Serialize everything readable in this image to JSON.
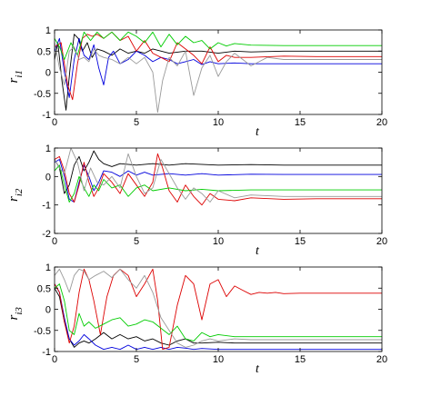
{
  "chart_data": [
    {
      "type": "line",
      "ylabel_main": "r",
      "ylabel_sub": "i1",
      "xlabel": "t",
      "xlim": [
        0,
        20
      ],
      "ylim": [
        -1,
        1
      ],
      "xticks": [
        "0",
        "5",
        "10",
        "15",
        "20"
      ],
      "xtick_values": [
        0,
        5,
        10,
        15,
        20
      ],
      "yticks": [
        "1",
        "0.5",
        "0",
        "-0.5",
        "-1"
      ],
      "ytick_values": [
        1,
        0.5,
        0,
        -0.5,
        -1
      ],
      "grid": false,
      "series": [
        {
          "color": "#000000",
          "x": [
            0,
            0.2,
            0.45,
            0.7,
            0.95,
            1.2,
            1.45,
            1.7,
            2,
            2.3,
            2.6,
            3,
            3.5,
            4,
            4.5,
            5,
            5.5,
            6,
            7,
            8,
            9,
            10,
            11,
            12,
            14,
            16,
            18,
            20
          ],
          "y": [
            0.3,
            0.7,
            -0.2,
            -0.9,
            0.1,
            0.9,
            0.8,
            0.5,
            0.7,
            0.35,
            0.55,
            0.5,
            0.4,
            0.55,
            0.45,
            0.5,
            0.45,
            0.55,
            0.45,
            0.5,
            0.5,
            0.45,
            0.5,
            0.48,
            0.5,
            0.5,
            0.5,
            0.5
          ]
        },
        {
          "color": "#0000dd",
          "x": [
            0,
            0.3,
            0.6,
            0.9,
            1.2,
            1.5,
            1.8,
            2.1,
            2.4,
            2.7,
            3,
            3.3,
            3.6,
            4,
            4.5,
            5,
            5.5,
            6,
            6.5,
            7,
            7.5,
            8,
            8.5,
            9,
            9.5,
            10,
            11,
            12,
            14,
            16,
            18,
            20
          ],
          "y": [
            0.5,
            0.8,
            0,
            -0.6,
            0.3,
            0.8,
            0.4,
            0.3,
            0.65,
            0.1,
            -0.3,
            0.35,
            0.5,
            0.2,
            0.3,
            0.5,
            0.4,
            0.25,
            0.35,
            0.3,
            0.2,
            0.25,
            0.3,
            0.18,
            0.25,
            0.2,
            0.22,
            0.2,
            0.2,
            0.2,
            0.2,
            0.2
          ]
        },
        {
          "color": "#dd0000",
          "x": [
            0,
            0.4,
            0.8,
            1.1,
            1.4,
            1.7,
            2,
            2.3,
            2.6,
            3,
            3.5,
            4,
            4.5,
            5,
            5.5,
            6,
            6.5,
            7,
            7.5,
            8,
            8.5,
            9,
            9.5,
            10,
            10.5,
            11,
            12,
            14,
            16,
            18,
            20
          ],
          "y": [
            0.6,
            0.7,
            -0.3,
            -0.65,
            0.2,
            0.8,
            0.9,
            0.85,
            0.9,
            0.8,
            0.95,
            0.75,
            0.85,
            0.5,
            0.75,
            0.45,
            0.35,
            0.25,
            0.7,
            0.55,
            0.4,
            0.2,
            0.6,
            0.25,
            0.4,
            0.35,
            0.35,
            0.38,
            0.37,
            0.37,
            0.37
          ]
        },
        {
          "color": "#00cc00",
          "x": [
            0,
            0.3,
            0.6,
            1,
            1.4,
            1.8,
            2.2,
            2.6,
            3,
            3.5,
            4,
            4.5,
            5,
            5.5,
            6,
            6.5,
            7,
            7.5,
            8,
            8.5,
            9,
            9.5,
            10,
            10.5,
            11,
            12,
            14,
            16,
            18,
            20
          ],
          "y": [
            0.8,
            0.6,
            0.3,
            0.7,
            0.4,
            0.95,
            0.75,
            0.95,
            0.8,
            0.95,
            0.75,
            0.95,
            0.85,
            0.7,
            0.95,
            0.6,
            0.9,
            0.65,
            0.85,
            0.7,
            0.75,
            0.55,
            0.7,
            0.62,
            0.68,
            0.64,
            0.63,
            0.63,
            0.63,
            0.63
          ]
        },
        {
          "color": "#999999",
          "x": [
            0,
            0.3,
            0.6,
            0.9,
            1.2,
            1.5,
            1.8,
            2.1,
            2.4,
            2.7,
            3,
            3.5,
            4,
            4.5,
            5,
            5.5,
            6,
            6.3,
            6.6,
            7,
            7.5,
            8,
            8.5,
            9,
            9.5,
            10,
            10.5,
            11,
            11.5,
            12,
            12.5,
            13,
            14,
            15,
            16,
            18,
            20
          ],
          "y": [
            0.7,
            0.1,
            -0.3,
            0.5,
            0.6,
            0.3,
            0.35,
            0.25,
            0.55,
            0.4,
            0.35,
            0.3,
            0.2,
            0.35,
            0.2,
            0.35,
            0.0,
            -0.95,
            -0.2,
            0.35,
            0.15,
            0.5,
            -0.55,
            0.1,
            0.4,
            -0.1,
            0.25,
            0.45,
            0.3,
            0.15,
            0.25,
            0.35,
            0.3,
            0.3,
            0.3,
            0.3,
            0.3
          ]
        }
      ]
    },
    {
      "type": "line",
      "ylabel_main": "r",
      "ylabel_sub": "i2",
      "xlabel": "t",
      "xlim": [
        0,
        20
      ],
      "ylim": [
        -2,
        1
      ],
      "xticks": [
        "0",
        "5",
        "10",
        "15",
        "20"
      ],
      "xtick_values": [
        0,
        5,
        10,
        15,
        20
      ],
      "yticks": [
        "1",
        "0",
        "-1",
        "-2"
      ],
      "ytick_values": [
        1,
        0,
        -1,
        -2
      ],
      "grid": false,
      "series": [
        {
          "color": "#000000",
          "x": [
            0,
            0.3,
            0.6,
            0.9,
            1.2,
            1.5,
            1.8,
            2.1,
            2.4,
            2.7,
            3,
            3.5,
            4,
            5,
            6,
            7,
            8,
            10,
            12,
            14,
            16,
            18,
            20
          ],
          "y": [
            0.6,
            0.3,
            -0.6,
            -0.3,
            0.4,
            0.7,
            0.2,
            0.5,
            0.9,
            0.6,
            0.45,
            0.35,
            0.45,
            0.4,
            0.45,
            0.4,
            0.45,
            0.4,
            0.42,
            0.4,
            0.4,
            0.4,
            0.4
          ]
        },
        {
          "color": "#0000dd",
          "x": [
            0,
            0.3,
            0.6,
            0.9,
            1.2,
            1.5,
            1.8,
            2.1,
            2.4,
            2.7,
            3,
            3.5,
            4,
            4.5,
            5,
            5.5,
            6,
            7,
            8,
            9,
            10,
            12,
            14,
            16,
            18,
            20
          ],
          "y": [
            0.5,
            0.6,
            0,
            -0.8,
            -0.9,
            -0.2,
            0.4,
            0.0,
            -0.5,
            -0.2,
            0.2,
            0.15,
            0.0,
            0.2,
            0.05,
            0.15,
            0.05,
            0.1,
            0.05,
            0.1,
            0.05,
            0.08,
            0.07,
            0.07,
            0.07,
            0.07
          ]
        },
        {
          "color": "#dd0000",
          "x": [
            0,
            0.3,
            0.6,
            0.9,
            1.2,
            1.5,
            1.8,
            2.1,
            2.4,
            2.7,
            3,
            3.5,
            4,
            4.5,
            5,
            5.5,
            6,
            6.3,
            6.6,
            7,
            7.5,
            8,
            8.5,
            9,
            9.5,
            10,
            11,
            12,
            14,
            16,
            18,
            20
          ],
          "y": [
            0.6,
            0.7,
            0.2,
            -0.6,
            -0.9,
            -0.3,
            0.5,
            -0.2,
            -0.7,
            -0.4,
            0.1,
            -0.2,
            -0.6,
            0.1,
            -0.3,
            -0.7,
            -0.2,
            0.8,
            0.3,
            -0.5,
            -0.9,
            -0.3,
            -0.7,
            -1.0,
            -0.6,
            -0.8,
            -0.85,
            -0.75,
            -0.8,
            -0.78,
            -0.78,
            -0.78
          ]
        },
        {
          "color": "#00cc00",
          "x": [
            0,
            0.3,
            0.6,
            0.9,
            1.2,
            1.5,
            1.8,
            2.1,
            2.4,
            2.7,
            3,
            3.5,
            4,
            4.5,
            5,
            5.5,
            6,
            7,
            8,
            9,
            10,
            12,
            14,
            16,
            18,
            20
          ],
          "y": [
            0.2,
            0.4,
            -0.3,
            -0.9,
            -0.6,
            0.0,
            -0.4,
            -0.7,
            -0.3,
            -0.5,
            -0.1,
            -0.4,
            -0.3,
            -0.7,
            -0.4,
            -0.3,
            -0.5,
            -0.4,
            -0.5,
            -0.45,
            -0.5,
            -0.47,
            -0.47,
            -0.47,
            -0.47,
            -0.47
          ]
        },
        {
          "color": "#999999",
          "x": [
            0,
            0.3,
            0.6,
            1,
            1.4,
            1.8,
            2.2,
            2.6,
            3,
            3.5,
            4,
            4.5,
            5,
            5.5,
            6,
            6.5,
            7,
            7.5,
            8,
            8.5,
            9,
            9.5,
            10,
            11,
            12,
            14,
            16,
            18,
            20
          ],
          "y": [
            0.6,
            0.3,
            0.1,
            1.0,
            0.5,
            -0.5,
            0.3,
            -0.2,
            -0.3,
            0.0,
            -0.4,
            0.8,
            0.0,
            -0.6,
            -0.4,
            0.6,
            0.1,
            -0.4,
            -0.8,
            -0.4,
            -0.6,
            -0.9,
            -0.5,
            -0.75,
            -0.65,
            -0.7,
            -0.7,
            -0.7,
            -0.7
          ]
        }
      ]
    },
    {
      "type": "line",
      "ylabel_main": "r",
      "ylabel_sub": "i3",
      "xlabel": "t",
      "xlim": [
        0,
        20
      ],
      "ylim": [
        -1,
        1
      ],
      "xticks": [
        "0",
        "5",
        "10",
        "15",
        "20"
      ],
      "xtick_values": [
        0,
        5,
        10,
        15,
        20
      ],
      "yticks": [
        "1",
        "0.5",
        "0",
        "-0.5",
        "-1"
      ],
      "ytick_values": [
        1,
        0.5,
        0,
        -0.5,
        -1
      ],
      "grid": false,
      "series": [
        {
          "color": "#000000",
          "x": [
            0,
            0.3,
            0.6,
            0.9,
            1.2,
            1.5,
            1.8,
            2.1,
            2.5,
            3,
            3.5,
            4,
            4.5,
            5,
            5.5,
            6,
            6.5,
            7,
            7.5,
            8,
            8.5,
            9,
            10,
            11,
            12,
            14,
            16,
            18,
            20
          ],
          "y": [
            0.5,
            0.3,
            -0.3,
            -0.7,
            -0.9,
            -0.8,
            -0.75,
            -0.8,
            -0.7,
            -0.55,
            -0.7,
            -0.6,
            -0.7,
            -0.65,
            -0.75,
            -0.7,
            -0.8,
            -0.85,
            -0.75,
            -0.7,
            -0.8,
            -0.8,
            -0.78,
            -0.8,
            -0.8,
            -0.8,
            -0.8,
            -0.8,
            -0.8
          ]
        },
        {
          "color": "#0000dd",
          "x": [
            0,
            0.3,
            0.6,
            0.9,
            1.2,
            1.5,
            1.8,
            2.1,
            2.5,
            3,
            3.5,
            4,
            4.5,
            5,
            5.5,
            6,
            6.5,
            7,
            7.5,
            8,
            8.5,
            9,
            10,
            11,
            12,
            14,
            16,
            18,
            20
          ],
          "y": [
            0.6,
            0.4,
            -0.2,
            -0.7,
            -0.85,
            -0.75,
            -0.6,
            -0.7,
            -0.85,
            -0.95,
            -0.9,
            -0.95,
            -0.85,
            -0.95,
            -0.9,
            -0.95,
            -0.9,
            -0.95,
            -0.9,
            -0.92,
            -0.95,
            -0.93,
            -0.95,
            -0.95,
            -0.95,
            -0.95,
            -0.95,
            -0.95,
            -0.95
          ]
        },
        {
          "color": "#dd0000",
          "x": [
            0,
            0.3,
            0.6,
            0.9,
            1.2,
            1.5,
            1.8,
            2.1,
            2.4,
            2.8,
            3.2,
            3.6,
            4,
            4.5,
            5,
            5.5,
            6,
            6.3,
            6.6,
            7,
            7.5,
            8,
            8.5,
            9,
            9.5,
            10,
            10.5,
            11,
            11.5,
            12,
            12.5,
            13,
            13.5,
            14,
            15,
            16,
            18,
            20
          ],
          "y": [
            0.6,
            0.4,
            -0.3,
            -0.8,
            -0.4,
            0.4,
            0.95,
            0.7,
            0.2,
            -0.6,
            0.3,
            0.8,
            0.95,
            0.8,
            0.3,
            0.6,
            0.95,
            0.2,
            -0.95,
            -0.9,
            0.1,
            0.8,
            0.6,
            -0.25,
            0.6,
            0.7,
            0.3,
            0.55,
            0.45,
            0.35,
            0.4,
            0.38,
            0.4,
            0.37,
            0.38,
            0.38,
            0.38,
            0.38
          ]
        },
        {
          "color": "#00cc00",
          "x": [
            0,
            0.3,
            0.6,
            0.9,
            1.2,
            1.5,
            1.8,
            2.1,
            2.5,
            3,
            3.5,
            4,
            4.5,
            5,
            5.5,
            6,
            6.5,
            7,
            7.5,
            8,
            8.5,
            9,
            9.5,
            10,
            11,
            12,
            14,
            16,
            18,
            20
          ],
          "y": [
            0.5,
            0.6,
            0.2,
            -0.5,
            -0.6,
            -0.1,
            -0.4,
            -0.3,
            -0.45,
            -0.35,
            -0.25,
            -0.2,
            -0.4,
            -0.35,
            -0.25,
            -0.3,
            -0.45,
            -0.6,
            -0.4,
            -0.7,
            -0.75,
            -0.55,
            -0.65,
            -0.6,
            -0.65,
            -0.65,
            -0.65,
            -0.65,
            -0.65,
            -0.65
          ]
        },
        {
          "color": "#999999",
          "x": [
            0,
            0.3,
            0.6,
            0.9,
            1.2,
            1.5,
            1.8,
            2.1,
            2.5,
            3,
            3.5,
            4,
            4.5,
            5,
            5.5,
            6,
            6.5,
            7,
            7.5,
            8,
            8.5,
            9,
            9.5,
            10,
            11,
            12,
            14,
            16,
            18,
            20
          ],
          "y": [
            0.8,
            0.95,
            0.7,
            0.4,
            0.8,
            0.95,
            0.9,
            0.7,
            0.8,
            0.9,
            0.75,
            0.95,
            0.7,
            0.5,
            0.8,
            0.4,
            -0.2,
            -0.5,
            -0.8,
            -0.9,
            -0.85,
            -0.75,
            -0.7,
            -0.75,
            -0.7,
            -0.72,
            -0.72,
            -0.72,
            -0.72,
            -0.72
          ]
        }
      ]
    }
  ]
}
